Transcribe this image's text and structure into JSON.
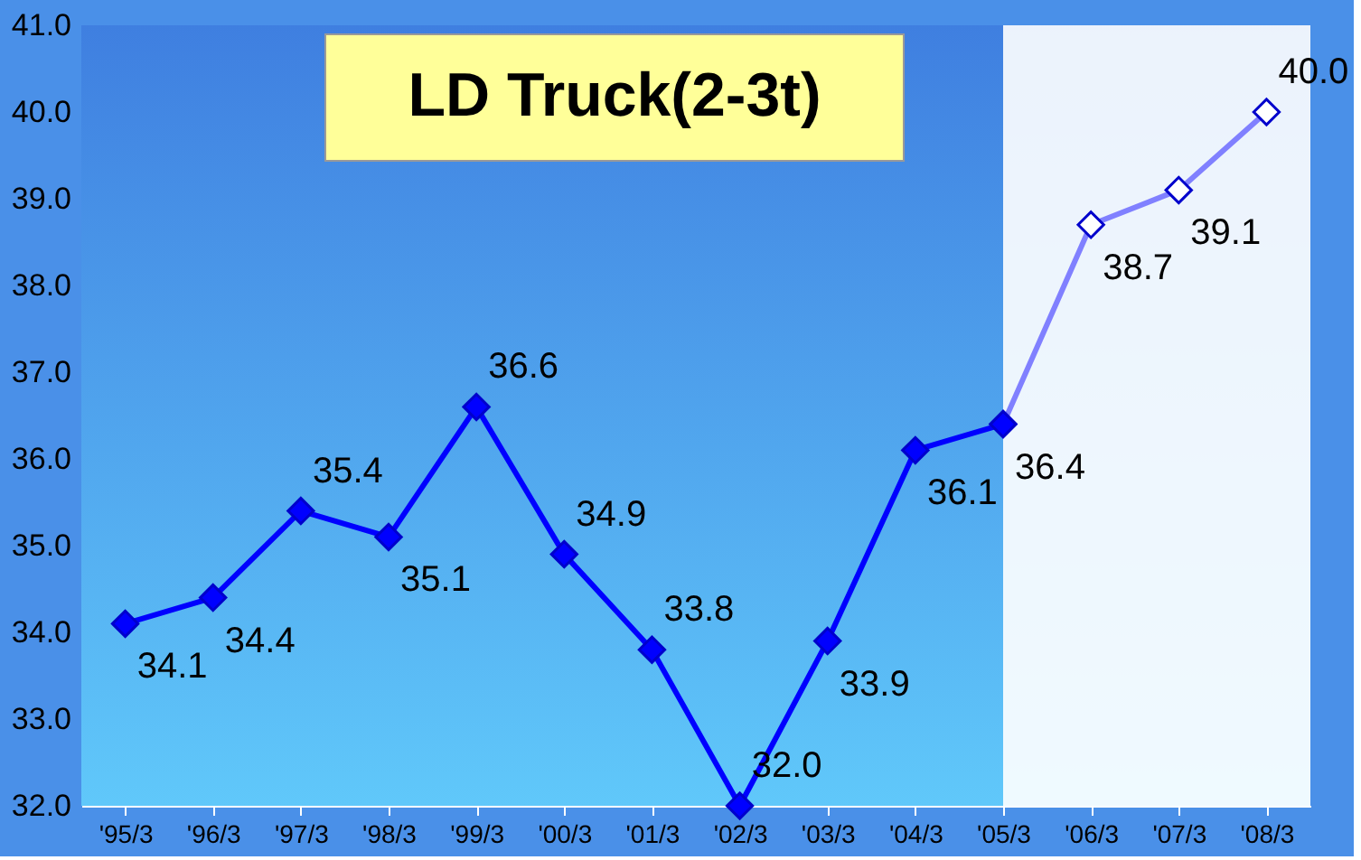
{
  "chart_data": {
    "type": "line",
    "title": "LD Truck(2-3t)",
    "categories": [
      "'95/3",
      "'96/3",
      "'97/3",
      "'98/3",
      "'99/3",
      "'00/3",
      "'01/3",
      "'02/3",
      "'03/3",
      "'04/3",
      "'05/3",
      "'06/3",
      "'07/3",
      "'08/3"
    ],
    "series": [
      {
        "color": "#8080ff",
        "values": [
          null,
          null,
          null,
          null,
          null,
          null,
          null,
          null,
          null,
          null,
          36.4,
          38.7,
          39.1,
          40.0
        ],
        "value_labels": [
          null,
          null,
          null,
          null,
          null,
          null,
          null,
          null,
          null,
          null,
          null,
          "38.7",
          "39.1",
          "40.0"
        ]
      },
      {
        "color": "#0000ff",
        "values": [
          34.1,
          34.4,
          35.4,
          35.1,
          36.6,
          34.9,
          33.8,
          32.0,
          33.9,
          36.1,
          36.4,
          null,
          null,
          null
        ],
        "value_labels": [
          "34.1",
          "34.4",
          "35.4",
          "35.1",
          "36.6",
          "34.9",
          "33.8",
          "32.0",
          "33.9",
          "36.1",
          "36.4",
          null,
          null,
          null
        ]
      }
    ],
    "ylim": [
      32,
      41
    ],
    "yticks": [
      {
        "value": 32,
        "label": "32.0"
      },
      {
        "value": 33,
        "label": "33.0"
      },
      {
        "value": 34,
        "label": "34.0"
      },
      {
        "value": 35,
        "label": "35.0"
      },
      {
        "value": 36,
        "label": "36.0"
      },
      {
        "value": 37,
        "label": "37.0"
      },
      {
        "value": 38,
        "label": "38.0"
      },
      {
        "value": 39,
        "label": "39.0"
      },
      {
        "value": 40,
        "label": "40.0"
      },
      {
        "value": 41,
        "label": "41.0"
      }
    ],
    "bands": [
      {
        "axis": "x",
        "from": "'05/3",
        "to": "'08/3",
        "color": "#ffffff"
      }
    ],
    "marker": "diamond",
    "grid": false
  }
}
